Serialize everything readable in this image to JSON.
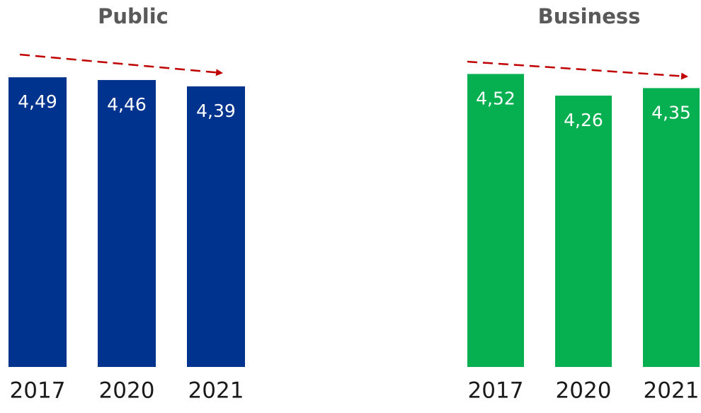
{
  "chart_data": [
    {
      "type": "bar",
      "title": "Public",
      "categories": [
        "2017",
        "2020",
        "2021"
      ],
      "values": [
        4.49,
        4.46,
        4.39
      ],
      "value_labels": [
        "4,49",
        "4,46",
        "4,39"
      ],
      "color": "#00338d",
      "ylim": [
        1.3,
        4.6
      ]
    },
    {
      "type": "bar",
      "title": "Business",
      "categories": [
        "2017",
        "2020",
        "2021"
      ],
      "values": [
        4.52,
        4.26,
        4.35
      ],
      "value_labels": [
        "4,52",
        "4,26",
        "4,35"
      ],
      "color": "#06b050",
      "ylim": [
        1,
        4.6
      ]
    }
  ]
}
